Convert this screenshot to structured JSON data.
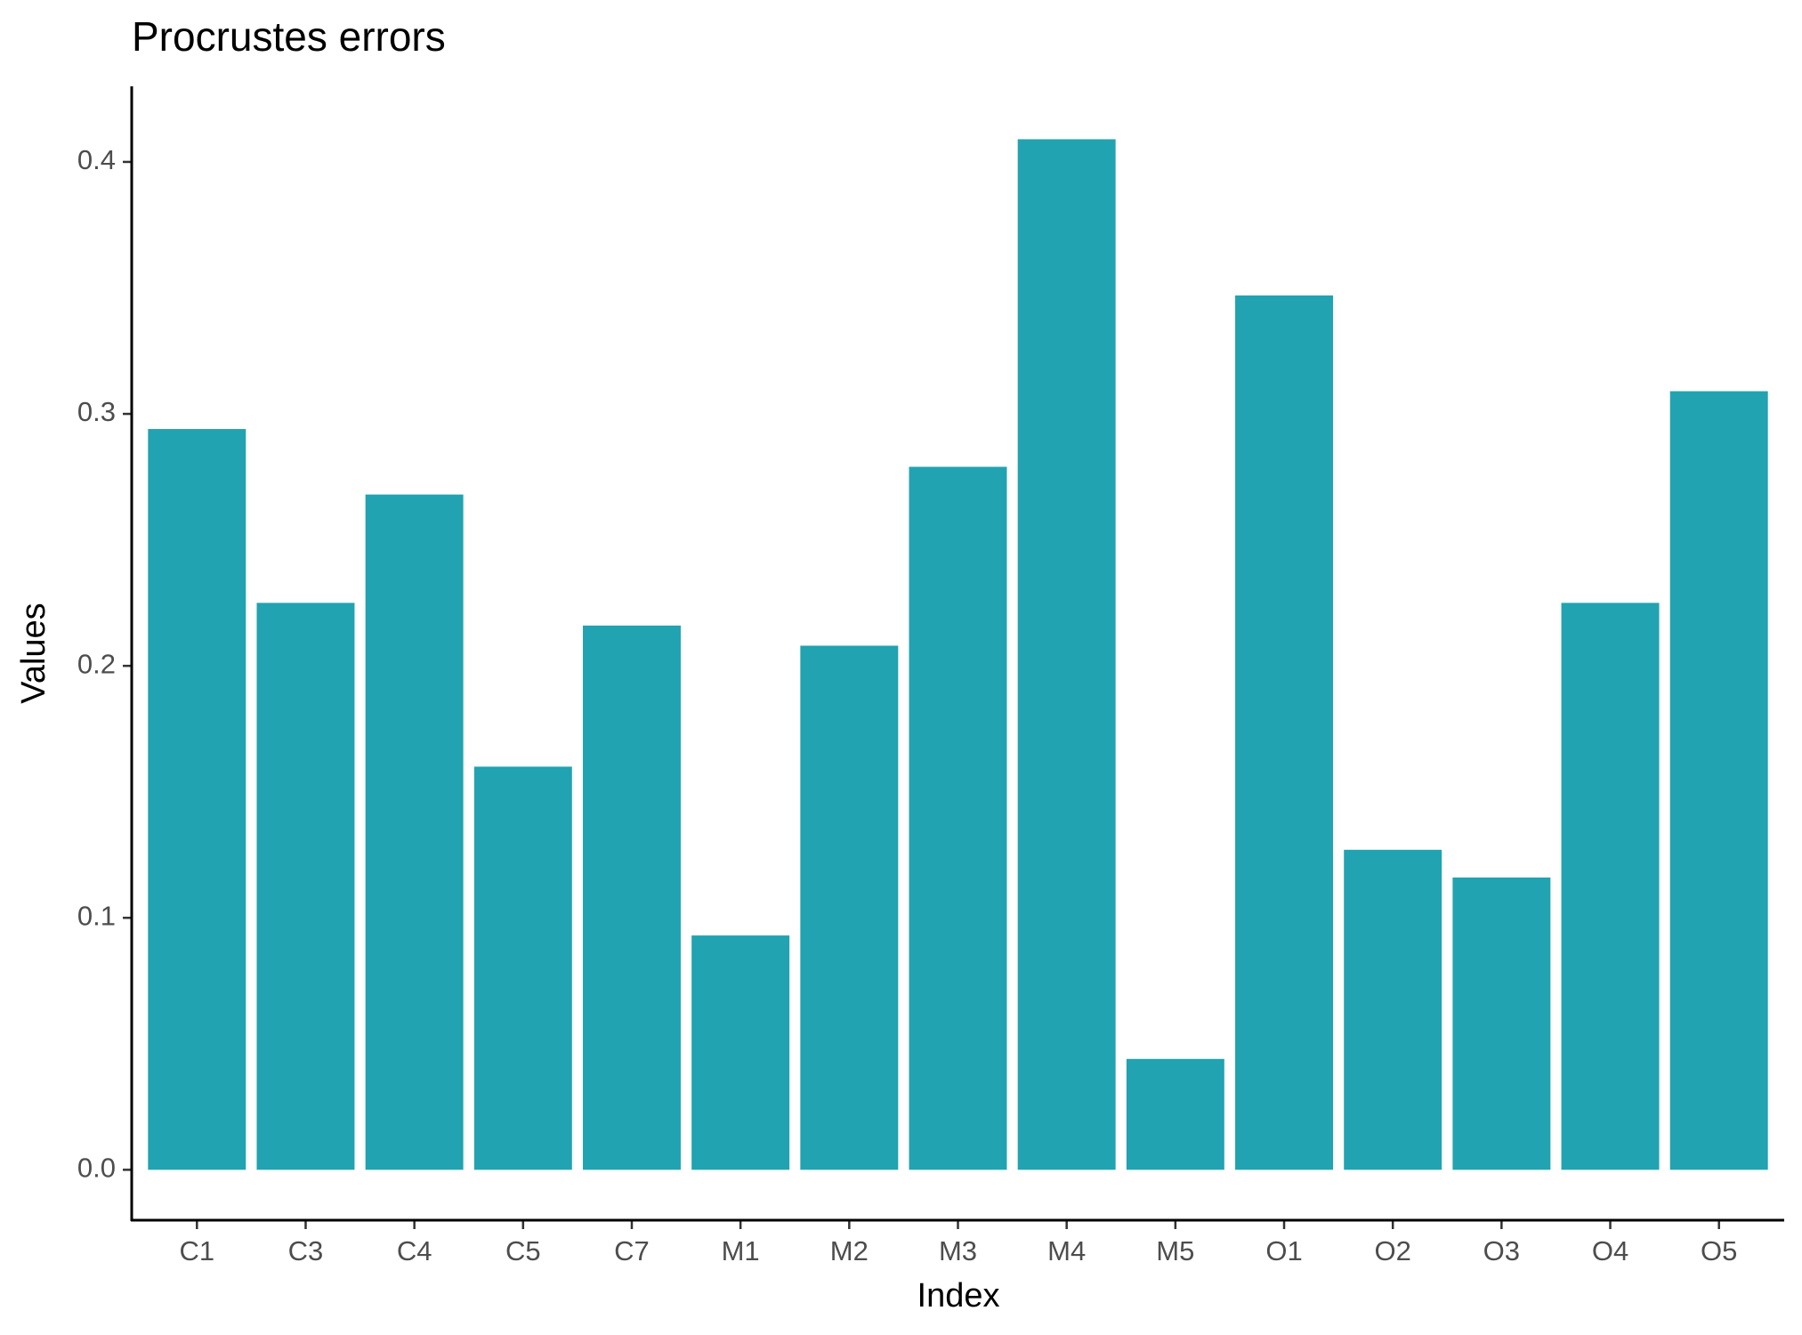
{
  "chart_data": {
    "type": "bar",
    "title": "Procrustes errors",
    "x_label": "Index",
    "y_label": "Values",
    "categories": [
      "C1",
      "C3",
      "C4",
      "C5",
      "C7",
      "M1",
      "M2",
      "M3",
      "M4",
      "M5",
      "O1",
      "O2",
      "O3",
      "O4",
      "O5"
    ],
    "values": [
      0.294,
      0.225,
      0.268,
      0.16,
      0.216,
      0.093,
      0.208,
      0.279,
      0.409,
      0.044,
      0.347,
      0.127,
      0.116,
      0.225,
      0.309
    ],
    "color": "#21a3b1",
    "ylim": [
      -0.02,
      0.43
    ],
    "yticks": [
      0.0,
      0.1,
      0.2,
      0.3,
      0.4
    ],
    "grid": false
  }
}
